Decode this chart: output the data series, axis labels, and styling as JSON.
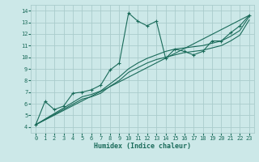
{
  "title": "",
  "xlabel": "Humidex (Indice chaleur)",
  "bg_color": "#cce8e8",
  "grid_color": "#aacccc",
  "line_color": "#1a6b5a",
  "xlim": [
    -0.5,
    23.5
  ],
  "ylim": [
    3.5,
    14.5
  ],
  "xticks": [
    0,
    1,
    2,
    3,
    4,
    5,
    6,
    7,
    8,
    9,
    10,
    11,
    12,
    13,
    14,
    15,
    16,
    17,
    18,
    19,
    20,
    21,
    22,
    23
  ],
  "yticks": [
    4,
    5,
    6,
    7,
    8,
    9,
    10,
    11,
    12,
    13,
    14
  ],
  "series1_x": [
    0,
    1,
    2,
    3,
    4,
    5,
    6,
    7,
    8,
    9,
    10,
    11,
    12,
    13,
    14,
    15,
    16,
    17,
    18,
    19,
    20,
    21,
    22,
    23
  ],
  "series1_y": [
    4.2,
    6.2,
    5.5,
    5.8,
    6.9,
    7.0,
    7.2,
    7.6,
    8.9,
    9.5,
    13.8,
    13.1,
    12.7,
    13.1,
    9.9,
    10.7,
    10.5,
    10.2,
    10.5,
    11.4,
    11.4,
    12.1,
    12.7,
    13.6
  ],
  "series2_x": [
    0,
    5,
    6,
    7,
    8,
    9,
    10,
    11,
    12,
    13,
    14,
    15,
    16,
    17,
    18,
    19,
    20,
    21,
    22,
    23
  ],
  "series2_y": [
    4.2,
    6.6,
    6.8,
    7.1,
    7.7,
    8.3,
    9.0,
    9.5,
    9.9,
    10.2,
    10.5,
    10.7,
    10.8,
    10.9,
    11.0,
    11.2,
    11.4,
    11.8,
    12.3,
    13.5
  ],
  "series3_x": [
    0,
    5,
    6,
    7,
    8,
    9,
    10,
    11,
    12,
    13,
    14,
    15,
    16,
    17,
    18,
    19,
    20,
    21,
    22,
    23
  ],
  "series3_y": [
    4.2,
    6.4,
    6.6,
    6.9,
    7.5,
    8.0,
    8.7,
    9.1,
    9.5,
    9.8,
    10.0,
    10.2,
    10.4,
    10.5,
    10.6,
    10.8,
    11.0,
    11.4,
    11.9,
    13.2
  ],
  "series4_x": [
    0,
    23
  ],
  "series4_y": [
    4.2,
    13.6
  ]
}
